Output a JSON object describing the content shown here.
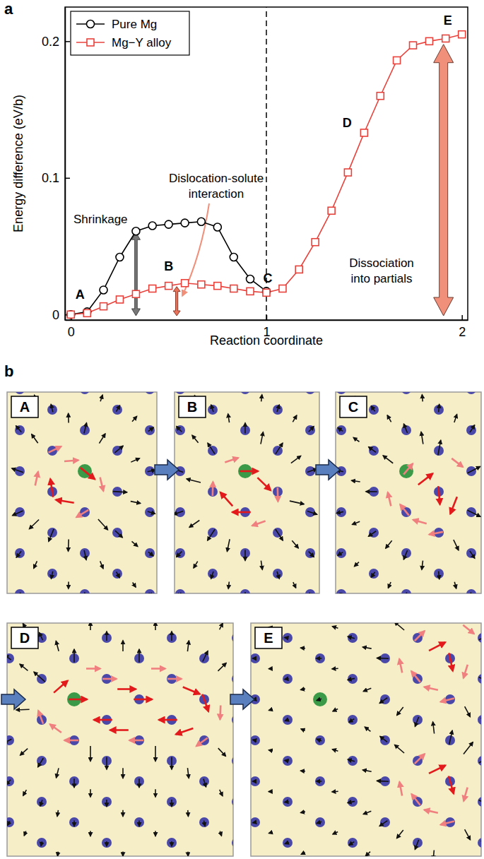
{
  "chart_data": {
    "type": "line",
    "panel_label": "a",
    "xlabel": "Reaction coordinate",
    "ylabel": "Energy difference (eV/b)",
    "x": [
      0,
      0.083,
      0.167,
      0.25,
      0.333,
      0.417,
      0.5,
      0.583,
      0.667,
      0.75,
      0.833,
      0.917,
      1,
      1.083,
      1.167,
      1.25,
      1.333,
      1.417,
      1.5,
      1.583,
      1.667,
      1.75,
      1.833,
      1.917,
      2
    ],
    "series": [
      {
        "name": "Pure Mg",
        "color": "#000000",
        "marker": "circle",
        "values": [
          0,
          0.002,
          0.018,
          0.042,
          0.061,
          0.065,
          0.066,
          0.067,
          0.068,
          0.064,
          0.042,
          0.026,
          0.017,
          null,
          null,
          null,
          null,
          null,
          null,
          null,
          null,
          null,
          null,
          null,
          null
        ]
      },
      {
        "name": "Mg−Y alloy",
        "color": "#e8423c",
        "marker": "square",
        "values": [
          0,
          0.001,
          0.006,
          0.011,
          0.015,
          0.019,
          0.021,
          0.023,
          0.022,
          0.021,
          0.019,
          0.017,
          0.016,
          0.019,
          0.033,
          0.053,
          0.076,
          0.104,
          0.133,
          0.16,
          0.186,
          0.197,
          0.2,
          0.202,
          0.205
        ]
      }
    ],
    "xlim": [
      -0.03,
      2.03
    ],
    "ylim": [
      -0.004,
      0.225
    ],
    "xticks": [
      0,
      1,
      2
    ],
    "yticks": [
      0,
      0.1,
      0.2
    ],
    "legend": "upper left",
    "reference_lines": [
      {
        "x": 1,
        "line_style": "dashed"
      }
    ],
    "point_labels": [
      "A",
      "B",
      "C",
      "D",
      "E"
    ],
    "annotations": [
      [
        "Shrinkage"
      ],
      [
        "Dislocation-solute",
        "interaction"
      ],
      [
        "Dissociation",
        "into partials"
      ]
    ]
  },
  "panel_b": {
    "label": "b",
    "frames": [
      "A",
      "B",
      "C",
      "D",
      "E"
    ]
  }
}
